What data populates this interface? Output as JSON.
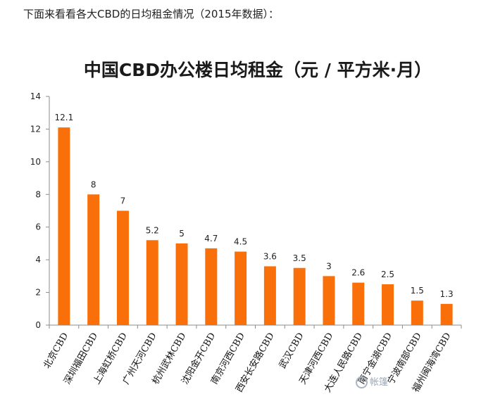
{
  "intro_text": "下面来看看各大CBD的日均租金情况（2015年数据）：",
  "watermark": "帐篷",
  "chart_data": {
    "type": "bar",
    "title": "中国CBD办公楼日均租金（元 / 平方米·月）",
    "xlabel": "",
    "ylabel": "",
    "ylim": [
      0,
      14
    ],
    "yticks": [
      0,
      2,
      4,
      6,
      8,
      10,
      12,
      14
    ],
    "grid": false,
    "bar_color": "#F96F0A",
    "categories": [
      "北京CBD",
      "深圳福田CBD",
      "上海虹桥CBD",
      "广州天河CBD",
      "杭州武林CBD",
      "沈阳金开CBD",
      "南京河西CBD",
      "西安长安路CBD",
      "武汉CBD",
      "天津河西CBD",
      "大连人民路CBD",
      "南宁金湖CBD",
      "宁波南部CBD",
      "福州闽海湾CBD"
    ],
    "values": [
      12.1,
      8,
      7,
      5.2,
      5,
      4.7,
      4.5,
      3.6,
      3.5,
      3,
      2.6,
      2.5,
      1.5,
      1.3
    ],
    "value_labels": [
      "12.1",
      "8",
      "7",
      "5.2",
      "5",
      "4.7",
      "4.5",
      "3.6",
      "3.5",
      "3",
      "2.6",
      "2.5",
      "1.5",
      "1.3"
    ]
  }
}
